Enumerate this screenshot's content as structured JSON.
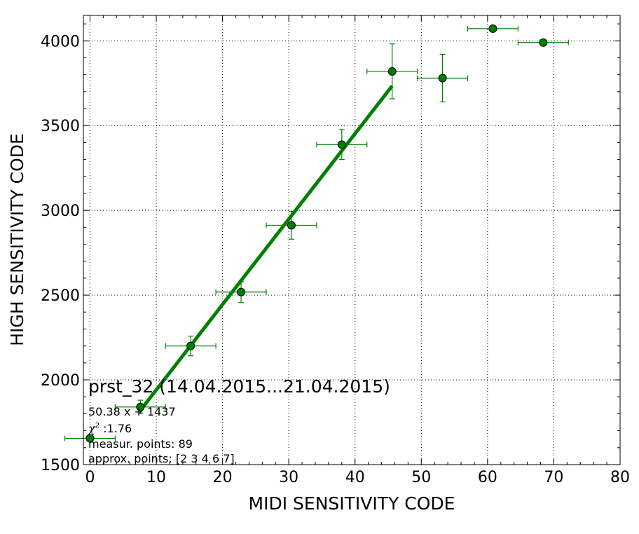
{
  "chart_data": {
    "type": "scatter",
    "title": "",
    "xlabel": "MIDI SENSITIVITY CODE",
    "ylabel": "HIGH SENSITIVITY CODE",
    "xlim": [
      -1,
      80
    ],
    "ylim": [
      1500,
      4150
    ],
    "xticks": [
      0,
      10,
      20,
      30,
      40,
      50,
      60,
      70,
      80
    ],
    "yticks": [
      1500,
      2000,
      2500,
      3000,
      3500,
      4000
    ],
    "grid": true,
    "colors": {
      "series": "#007f00",
      "marker_edge": "#000000",
      "fit_line": "#007f00"
    },
    "series": [
      {
        "x": [
          0,
          7.6,
          15.2,
          22.8,
          30.4,
          38.0,
          45.6,
          53.2,
          60.8,
          68.4
        ],
        "y": [
          1655,
          1840,
          2200,
          2518,
          2912,
          3388,
          3820,
          3780,
          4072,
          3990
        ],
        "xerr": [
          3.8,
          3.8,
          3.8,
          3.8,
          3.8,
          3.8,
          3.8,
          3.8,
          3.8,
          3.8
        ],
        "yerr": [
          0,
          40,
          58,
          62,
          82,
          88,
          162,
          140,
          0,
          0
        ]
      }
    ],
    "fit": {
      "slope": 50.38,
      "intercept": 1437,
      "x_range": [
        7.6,
        45.6
      ]
    },
    "annotations": {
      "header": "prst_32 (14.04.2015...21.04.2015)",
      "formula": "50.38 x + 1437",
      "chi_symbol": "χ",
      "chi_exp": "2",
      "chi_value": " :1.76",
      "measur": "measur. points: 89",
      "approx": "approx. points: [2 3 4 6 7]"
    }
  }
}
